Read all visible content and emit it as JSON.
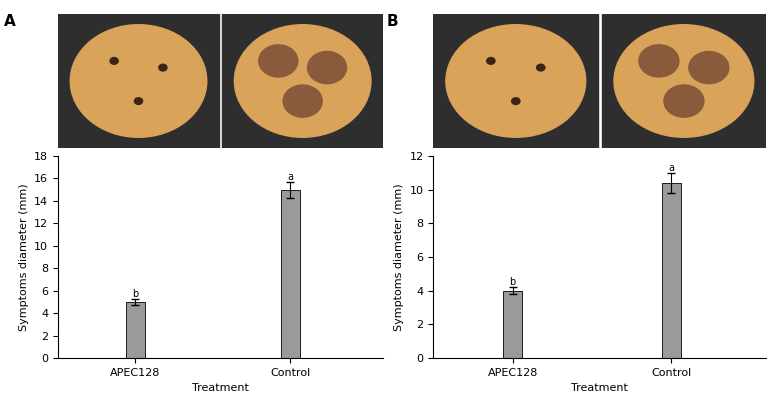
{
  "chart_data": [
    {
      "type": "bar",
      "title": "A",
      "categories": [
        "APEC128",
        "Control"
      ],
      "values": [
        5.0,
        15.0
      ],
      "errors": [
        0.3,
        0.7
      ],
      "annotations": [
        "b",
        "a"
      ],
      "color": "#9a9a9a",
      "x_label": "Treatment",
      "y_label": "Symptoms diameter (mm)",
      "ylim": [
        0,
        18
      ],
      "yticks": [
        0,
        2,
        4,
        6,
        8,
        10,
        12,
        14,
        16,
        18
      ]
    },
    {
      "type": "bar",
      "title": "B",
      "categories": [
        "APEC128",
        "Control"
      ],
      "values": [
        4.0,
        10.4
      ],
      "errors": [
        0.2,
        0.6
      ],
      "annotations": [
        "b",
        "a"
      ],
      "color": "#9a9a9a",
      "x_label": "Treatment",
      "y_label": "Symptoms diameter (mm)",
      "ylim": [
        0,
        12
      ],
      "yticks": [
        0,
        2,
        4,
        6,
        8,
        10,
        12
      ]
    }
  ]
}
